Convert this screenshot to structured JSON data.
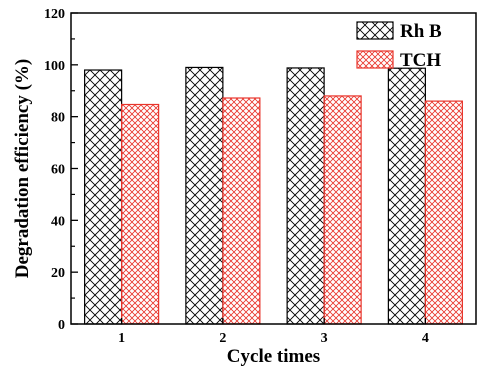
{
  "chart_data": {
    "type": "bar",
    "categories": [
      "1",
      "2",
      "3",
      "4"
    ],
    "series": [
      {
        "name": "Rh B",
        "values": [
          98,
          99,
          98.8,
          98.7
        ],
        "color": "#000000",
        "pattern": "crosshatch"
      },
      {
        "name": "TCH",
        "values": [
          84.7,
          87.2,
          88,
          86
        ],
        "color": "#e8342b",
        "pattern": "crosshatch"
      }
    ],
    "xlabel": "Cycle times",
    "ylabel": "Degradation efficiency (%)",
    "ylim": [
      0,
      120
    ],
    "yticks": [
      0,
      20,
      40,
      60,
      80,
      100,
      120
    ],
    "grid": false,
    "legend": "top-right"
  }
}
